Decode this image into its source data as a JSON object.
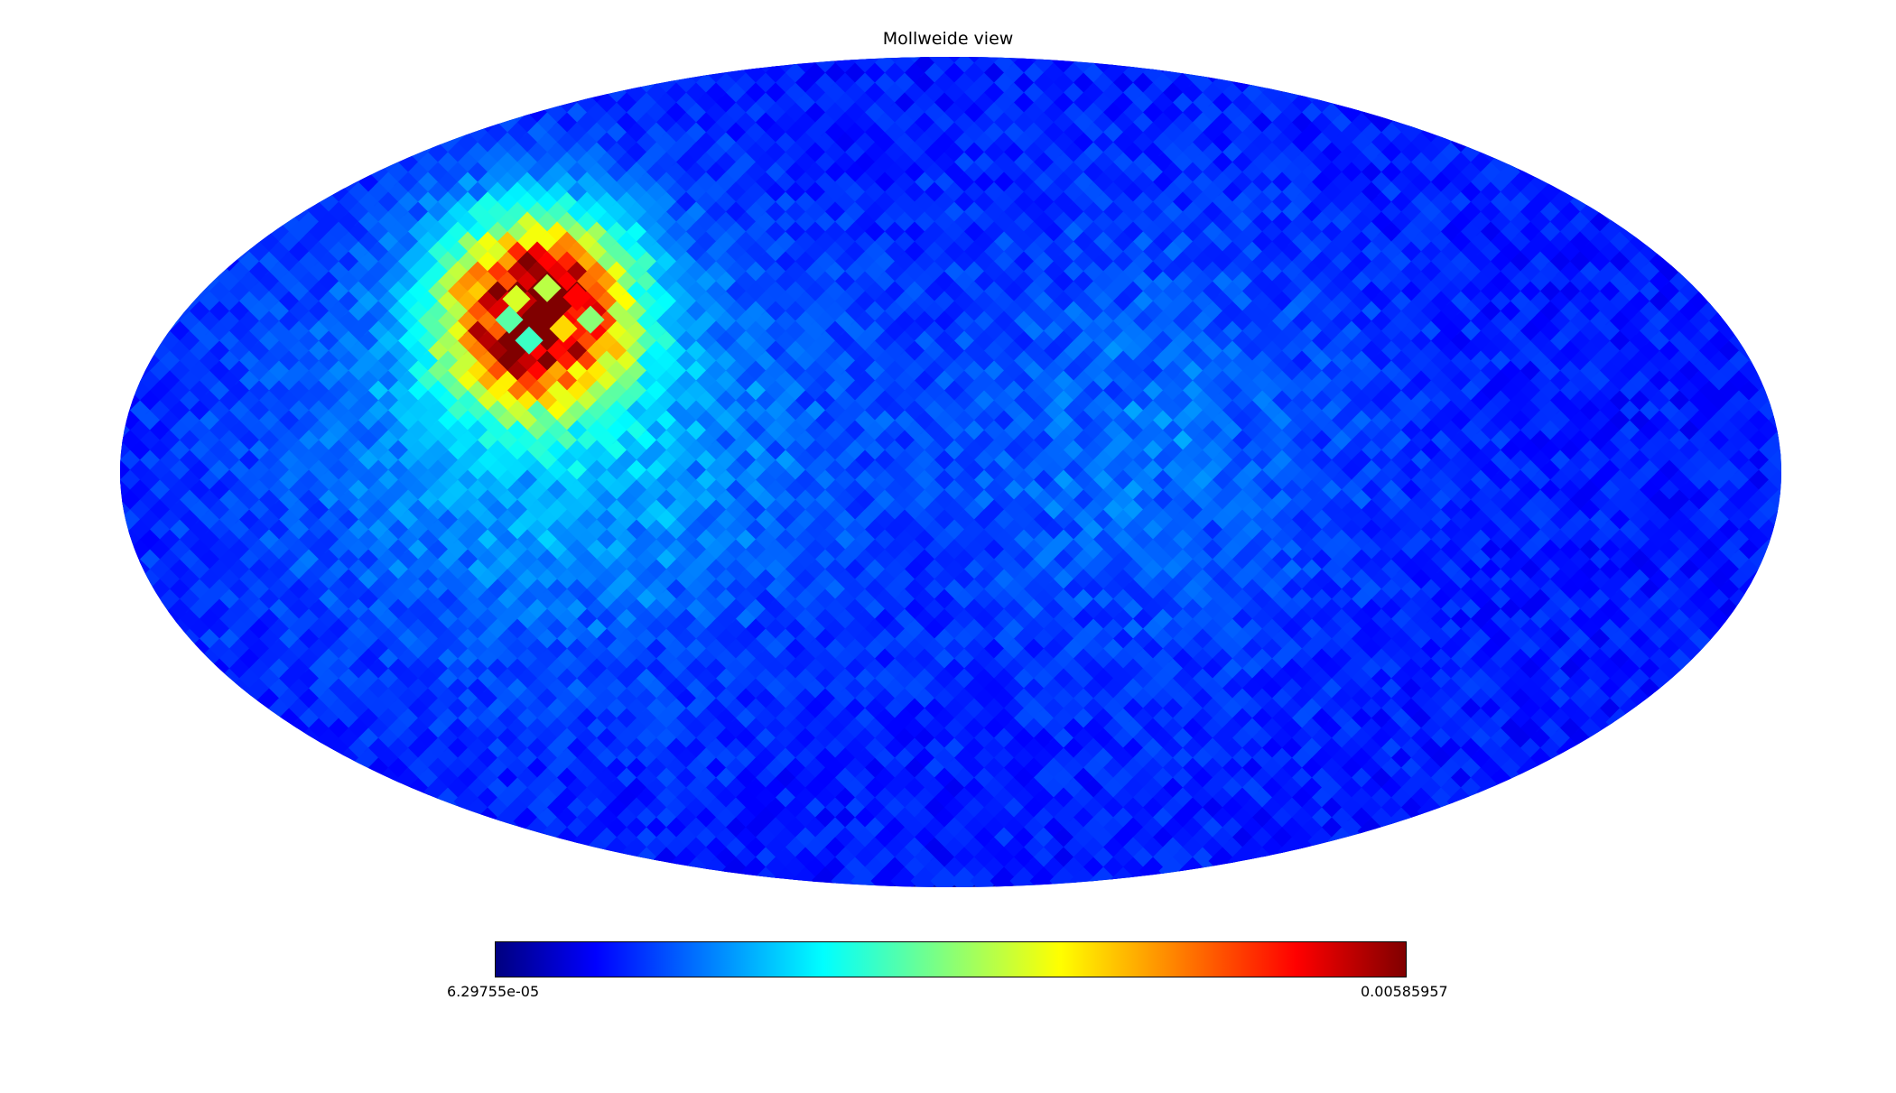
{
  "chart_data": {
    "type": "heatmap",
    "projection": "mollweide",
    "title": "Mollweide view",
    "colormap": "jet",
    "colorbar": {
      "min_label": "6.29755e-05",
      "max_label": "0.00585957",
      "min": 6.29755e-05,
      "max": 0.00585957,
      "orientation": "horizontal"
    },
    "colors": {
      "background_map": "#0a0fb8",
      "jet_stops": [
        "#000080",
        "#0000ff",
        "#00ffff",
        "#ffff00",
        "#ff0000",
        "#800000"
      ]
    },
    "hotspots": [
      {
        "lon_deg": 97,
        "lat_deg": 28,
        "value": 0.00585
      },
      {
        "lon_deg": 75,
        "lat_deg": 6,
        "value": 0.0014
      },
      {
        "lon_deg": -45,
        "lat_deg": 5,
        "value": 0.0011
      },
      {
        "lon_deg": 125,
        "lat_deg": 4,
        "value": 0.0009
      }
    ]
  }
}
